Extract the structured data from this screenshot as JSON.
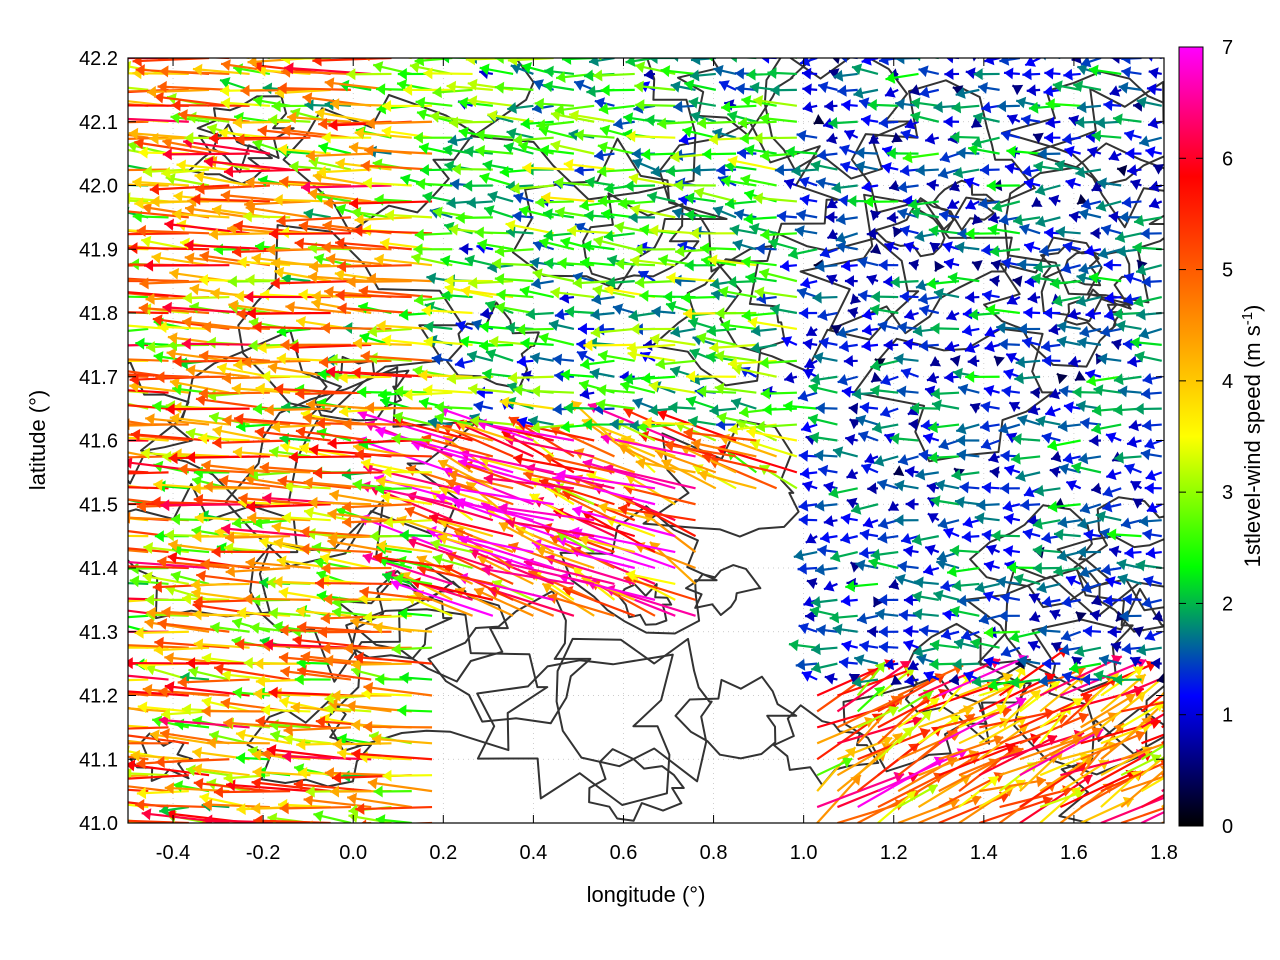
{
  "chart_data": {
    "type": "vector-field",
    "xlabel": "longitude (°)",
    "ylabel": "latitude (°)",
    "xlim": [
      -0.5,
      1.8
    ],
    "ylim": [
      41.0,
      42.2
    ],
    "x_ticks": [
      -0.4,
      -0.2,
      0.0,
      0.2,
      0.4,
      0.6,
      0.8,
      1.0,
      1.2,
      1.4,
      1.6,
      1.8
    ],
    "x_tick_labels": [
      "-0.4",
      "-0.2",
      "0.0",
      "0.2",
      "0.4",
      "0.6",
      "0.8",
      "1.0",
      "1.2",
      "1.4",
      "1.6",
      "1.8"
    ],
    "y_ticks": [
      41.0,
      41.1,
      41.2,
      41.3,
      41.4,
      41.5,
      41.6,
      41.7,
      41.8,
      41.9,
      42.0,
      42.1,
      42.2
    ],
    "y_tick_labels": [
      "41.0",
      "41.1",
      "41.2",
      "41.3",
      "41.4",
      "41.5",
      "41.6",
      "41.7",
      "41.8",
      "41.9",
      "42.0",
      "42.1",
      "42.2"
    ],
    "grid": true,
    "colorbar": {
      "label_main": "1stlevel-wind speed (m s",
      "label_exp": "-1",
      "label_close": ")",
      "range": [
        0,
        7
      ],
      "ticks": [
        0,
        1,
        2,
        3,
        4,
        5,
        6,
        7
      ],
      "tick_labels": [
        "0",
        "1",
        "2",
        "3",
        "4",
        "5",
        "6",
        "7"
      ],
      "stops": [
        "#000000",
        "#0000ff",
        "#00ff00",
        "#ffff00",
        "#ff8000",
        "#ff0000",
        "#ff00ff"
      ]
    },
    "contour_color": "#333333",
    "wind_field": {
      "note_source": "sampled grid of wind vectors (u,v in m/s)",
      "x_step": 0.045,
      "y_step": 0.025,
      "regions": [
        {
          "xr": [
            -0.5,
            0.2
          ],
          "yr": [
            41.0,
            42.2
          ],
          "u": -4.5,
          "v": 0.3
        },
        {
          "xr": [
            0.2,
            0.8
          ],
          "yr": [
            41.3,
            41.6
          ],
          "u": -5.5,
          "v": 2.0
        },
        {
          "xr": [
            0.8,
            1.2
          ],
          "yr": [
            41.5,
            41.7
          ],
          "u": -4.5,
          "v": 1.5
        },
        {
          "xr": [
            0.2,
            1.0
          ],
          "yr": [
            41.6,
            42.2
          ],
          "u": -2.5,
          "v": 0.2
        },
        {
          "xr": [
            1.0,
            1.8
          ],
          "yr": [
            41.2,
            42.2
          ],
          "u": -1.5,
          "v": 0.0
        },
        {
          "xr": [
            1.0,
            1.8
          ],
          "yr": [
            41.0,
            41.2
          ],
          "u": 4.5,
          "v": 2.5
        }
      ]
    }
  }
}
